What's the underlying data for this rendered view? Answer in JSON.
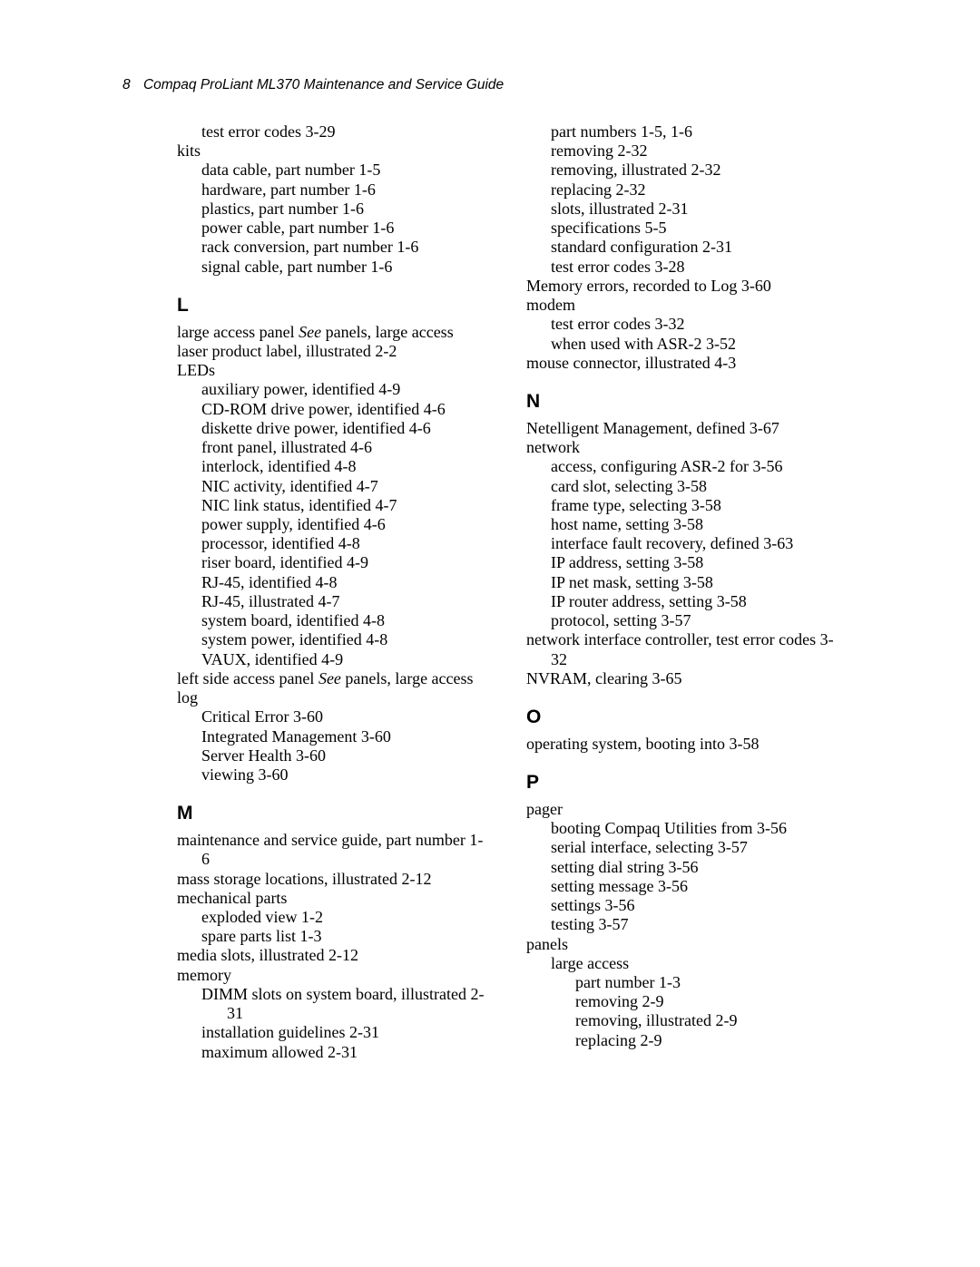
{
  "header": {
    "page_number": "8",
    "title": "Compaq ProLiant ML370 Maintenance and Service Guide"
  },
  "left": {
    "pre": [
      {
        "lvl": 1,
        "text": "test error codes   3-29"
      },
      {
        "lvl": 0,
        "text": "kits"
      },
      {
        "lvl": 1,
        "text": "data cable, part number   1-5"
      },
      {
        "lvl": 1,
        "text": "hardware, part number   1-6"
      },
      {
        "lvl": 1,
        "text": "plastics, part number   1-6"
      },
      {
        "lvl": 1,
        "text": "power cable, part number   1-6"
      },
      {
        "lvl": 1,
        "text": "rack conversion, part number   1-6"
      },
      {
        "lvl": 1,
        "text": "signal cable, part number   1-6"
      }
    ],
    "L_heading": "L",
    "L": [
      {
        "lvl": 0,
        "text": "large access panel   ",
        "see": "See",
        "rest": " panels, large access",
        "cont": true
      },
      {
        "lvl": 0,
        "text": "laser product label, illustrated   2-2"
      },
      {
        "lvl": 0,
        "text": "LEDs"
      },
      {
        "lvl": 1,
        "text": "auxiliary power, identified   4-9"
      },
      {
        "lvl": 1,
        "text": "CD-ROM drive power, identified   4-6"
      },
      {
        "lvl": 1,
        "text": "diskette drive power, identified   4-6"
      },
      {
        "lvl": 1,
        "text": "front panel, illustrated   4-6"
      },
      {
        "lvl": 1,
        "text": "interlock, identified   4-8"
      },
      {
        "lvl": 1,
        "text": "NIC activity, identified   4-7"
      },
      {
        "lvl": 1,
        "text": "NIC link status, identified   4-7"
      },
      {
        "lvl": 1,
        "text": "power supply, identified   4-6"
      },
      {
        "lvl": 1,
        "text": "processor, identified   4-8"
      },
      {
        "lvl": 1,
        "text": "riser board, identified   4-9"
      },
      {
        "lvl": 1,
        "text": "RJ-45, identified   4-8"
      },
      {
        "lvl": 1,
        "text": "RJ-45, illustrated   4-7"
      },
      {
        "lvl": 1,
        "text": "system board, identified   4-8"
      },
      {
        "lvl": 1,
        "text": "system power, identified   4-8"
      },
      {
        "lvl": 1,
        "text": "VAUX, identified   4-9"
      },
      {
        "lvl": 0,
        "text": "left side access panel   ",
        "see": "See",
        "rest": " panels, large access",
        "cont": true
      },
      {
        "lvl": 0,
        "text": "log"
      },
      {
        "lvl": 1,
        "text": "Critical Error   3-60"
      },
      {
        "lvl": 1,
        "text": "Integrated Management   3-60"
      },
      {
        "lvl": 1,
        "text": "Server Health   3-60"
      },
      {
        "lvl": 1,
        "text": "viewing   3-60"
      }
    ],
    "M_heading": "M",
    "M": [
      {
        "lvl": 0,
        "text": "maintenance and service guide, part number   1-6",
        "cont": true
      },
      {
        "lvl": 0,
        "text": "mass storage locations, illustrated   2-12",
        "cont": true
      },
      {
        "lvl": 0,
        "text": "mechanical parts"
      },
      {
        "lvl": 1,
        "text": "exploded view   1-2"
      },
      {
        "lvl": 1,
        "text": "spare parts list   1-3"
      },
      {
        "lvl": 0,
        "text": "media slots, illustrated   2-12"
      },
      {
        "lvl": 0,
        "text": "memory"
      },
      {
        "lvl": 1,
        "text": "DIMM slots on system board, illustrated   2-31"
      },
      {
        "lvl": 1,
        "text": "installation guidelines   2-31"
      },
      {
        "lvl": 1,
        "text": "maximum allowed   2-31"
      }
    ]
  },
  "right": {
    "pre": [
      {
        "lvl": 1,
        "text": "part numbers   1-5, 1-6"
      },
      {
        "lvl": 1,
        "text": "removing   2-32"
      },
      {
        "lvl": 1,
        "text": "removing, illustrated   2-32"
      },
      {
        "lvl": 1,
        "text": "replacing   2-32"
      },
      {
        "lvl": 1,
        "text": "slots, illustrated   2-31"
      },
      {
        "lvl": 1,
        "text": "specifications   5-5"
      },
      {
        "lvl": 1,
        "text": "standard configuration   2-31"
      },
      {
        "lvl": 1,
        "text": "test error codes   3-28"
      },
      {
        "lvl": 0,
        "text": "Memory errors, recorded to Log   3-60",
        "cont": true
      },
      {
        "lvl": 0,
        "text": "modem"
      },
      {
        "lvl": 1,
        "text": "test error codes   3-32"
      },
      {
        "lvl": 1,
        "text": "when used with ASR-2   3-52"
      },
      {
        "lvl": 0,
        "text": "mouse connector, illustrated   4-3"
      }
    ],
    "N_heading": "N",
    "N": [
      {
        "lvl": 0,
        "text": "Netelligent Management, defined   3-67",
        "cont": true
      },
      {
        "lvl": 0,
        "text": "network"
      },
      {
        "lvl": 1,
        "text": "access, configuring ASR-2 for   3-56"
      },
      {
        "lvl": 1,
        "text": "card slot, selecting   3-58"
      },
      {
        "lvl": 1,
        "text": "frame type, selecting   3-58"
      },
      {
        "lvl": 1,
        "text": "host name, setting   3-58"
      },
      {
        "lvl": 1,
        "text": "interface fault recovery, defined   3-63"
      },
      {
        "lvl": 1,
        "text": "IP address, setting   3-58"
      },
      {
        "lvl": 1,
        "text": "IP net mask, setting   3-58"
      },
      {
        "lvl": 1,
        "text": "IP router address, setting   3-58"
      },
      {
        "lvl": 1,
        "text": "protocol, setting   3-57"
      },
      {
        "lvl": 0,
        "text": "network interface controller, test error codes   3-32",
        "cont": true
      },
      {
        "lvl": 0,
        "text": "NVRAM, clearing   3-65"
      }
    ],
    "O_heading": "O",
    "O": [
      {
        "lvl": 0,
        "text": "operating system, booting into   3-58"
      }
    ],
    "P_heading": "P",
    "P": [
      {
        "lvl": 0,
        "text": "pager"
      },
      {
        "lvl": 1,
        "text": "booting Compaq Utilities from   3-56"
      },
      {
        "lvl": 1,
        "text": "serial interface, selecting   3-57"
      },
      {
        "lvl": 1,
        "text": "setting dial string   3-56"
      },
      {
        "lvl": 1,
        "text": "setting message   3-56"
      },
      {
        "lvl": 1,
        "text": "settings   3-56"
      },
      {
        "lvl": 1,
        "text": "testing   3-57"
      },
      {
        "lvl": 0,
        "text": "panels"
      },
      {
        "lvl": 1,
        "text": "large access"
      },
      {
        "lvl": 2,
        "text": "part number   1-3"
      },
      {
        "lvl": 2,
        "text": "removing   2-9"
      },
      {
        "lvl": 2,
        "text": "removing, illustrated   2-9"
      },
      {
        "lvl": 2,
        "text": "replacing   2-9"
      }
    ]
  }
}
